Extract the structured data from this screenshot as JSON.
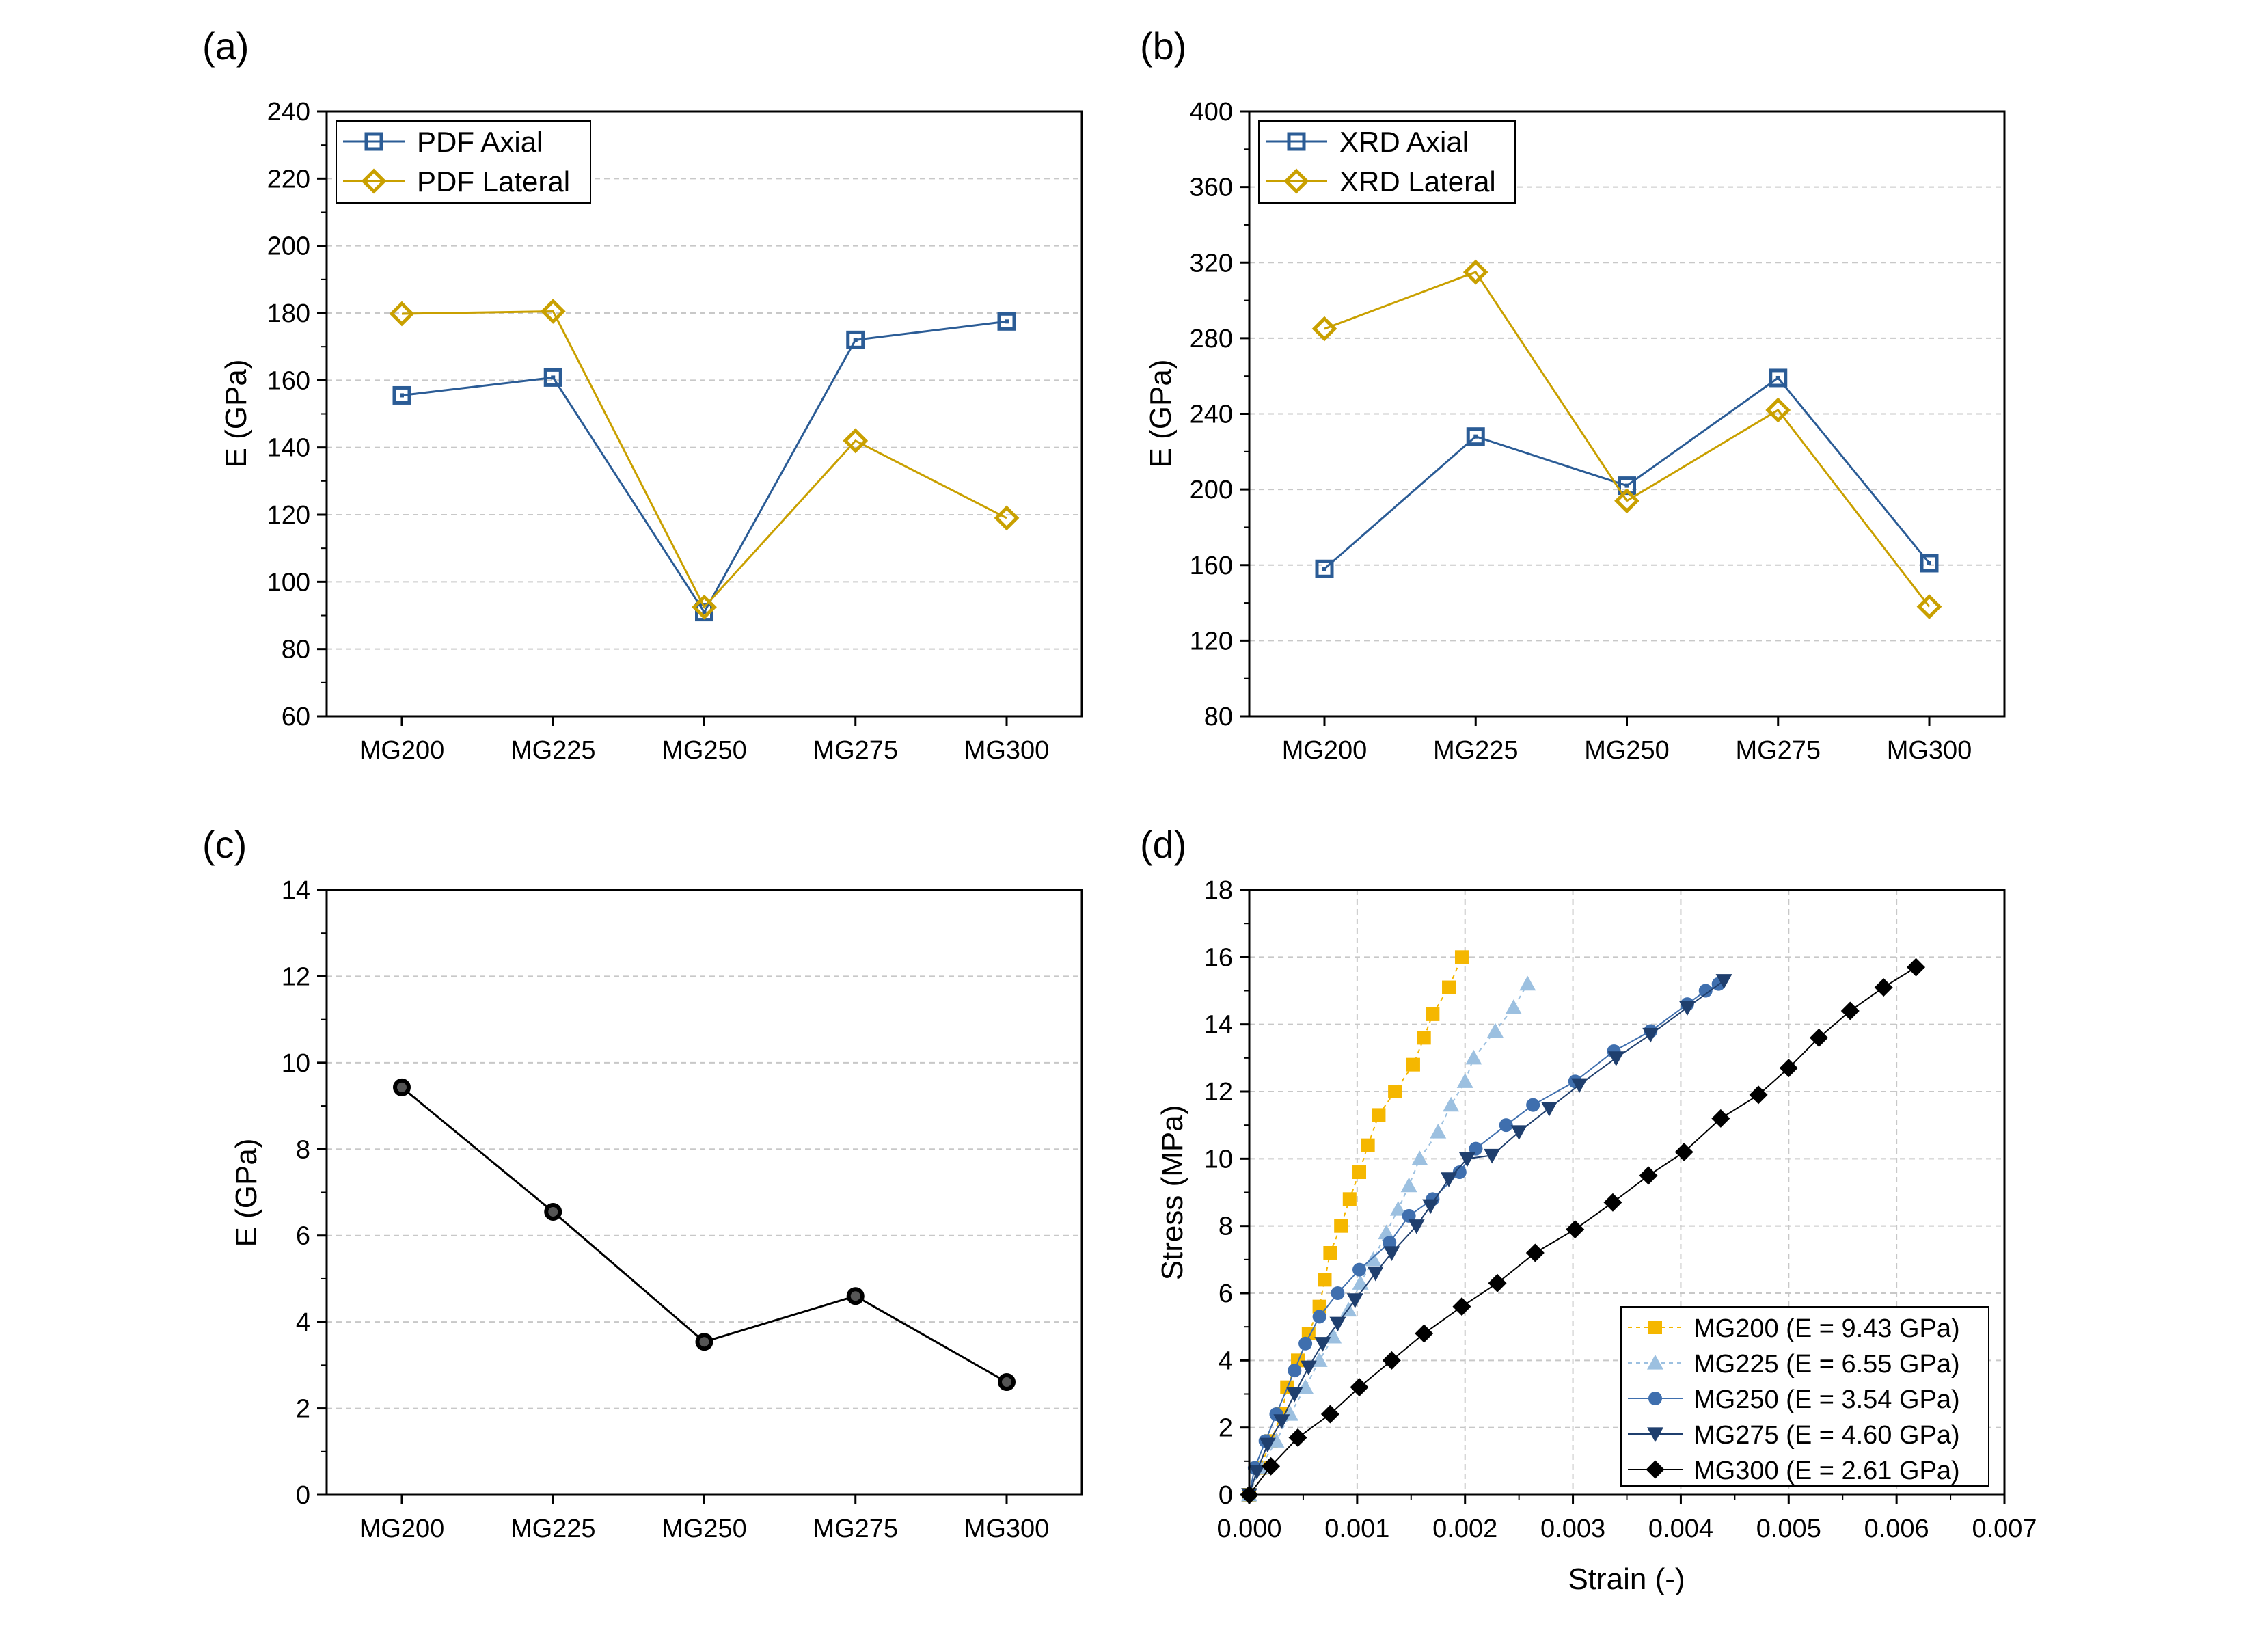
{
  "colors": {
    "axial": "#2b5c96",
    "lateral": "#c9a000",
    "black": "#000000",
    "mg200": "#f5b700",
    "mg225": "#9cc0e0",
    "mg250": "#3f6fae",
    "mg275": "#1f3f6e",
    "mg300": "#000000",
    "grid": "#c8c8c8"
  },
  "chart_data": [
    {
      "panel_label": "(a)",
      "type": "line",
      "categories": [
        "MG200",
        "MG225",
        "MG250",
        "MG275",
        "MG300"
      ],
      "ylabel": "E (GPa)",
      "xlabel": "",
      "ylim": [
        60,
        240
      ],
      "yticks": [
        60,
        80,
        100,
        120,
        140,
        160,
        180,
        200,
        220,
        240
      ],
      "grid": "horizontal dashed",
      "legend_position": "top-left",
      "series": [
        {
          "name": "PDF Axial",
          "marker": "square",
          "color_key": "axial",
          "values": [
            155.5,
            160.8,
            91,
            172,
            177.5
          ]
        },
        {
          "name": "PDF Lateral",
          "marker": "diamond",
          "color_key": "lateral",
          "values": [
            179.8,
            180.5,
            92.5,
            142,
            119
          ]
        }
      ]
    },
    {
      "panel_label": "(b)",
      "type": "line",
      "categories": [
        "MG200",
        "MG225",
        "MG250",
        "MG275",
        "MG300"
      ],
      "ylabel": "E (GPa)",
      "xlabel": "",
      "ylim": [
        80,
        400
      ],
      "yticks": [
        80,
        120,
        160,
        200,
        240,
        280,
        320,
        360,
        400
      ],
      "grid": "horizontal dashed",
      "legend_position": "top-left",
      "series": [
        {
          "name": "XRD Axial",
          "marker": "square",
          "color_key": "axial",
          "values": [
            158,
            228,
            202,
            259,
            161
          ]
        },
        {
          "name": "XRD Lateral",
          "marker": "diamond",
          "color_key": "lateral",
          "values": [
            285,
            315,
            194,
            242,
            138
          ]
        }
      ]
    },
    {
      "panel_label": "(c)",
      "type": "line",
      "categories": [
        "MG200",
        "MG225",
        "MG250",
        "MG275",
        "MG300"
      ],
      "ylabel": "E (GPa)",
      "xlabel": "",
      "ylim": [
        0,
        14
      ],
      "yticks": [
        0,
        2,
        4,
        6,
        8,
        10,
        12,
        14
      ],
      "grid": "horizontal dashed",
      "series": [
        {
          "name": "",
          "marker": "circle-open",
          "color_key": "black",
          "values": [
            9.43,
            6.55,
            3.54,
            4.6,
            2.61
          ]
        }
      ]
    },
    {
      "panel_label": "(d)",
      "type": "scatter",
      "xlabel": "Strain (-)",
      "ylabel": "Stress (MPa)",
      "xlim": [
        0,
        0.007
      ],
      "ylim": [
        0,
        18
      ],
      "xticks": [
        "0.000",
        "0.001",
        "0.002",
        "0.003",
        "0.004",
        "0.005",
        "0.006",
        "0.007"
      ],
      "yticks": [
        0,
        2,
        4,
        6,
        8,
        10,
        12,
        14,
        16,
        18
      ],
      "grid": "both dashed",
      "legend_position": "bottom-right",
      "series": [
        {
          "name": "MG200 (E = 9.43 GPa)",
          "marker": "square",
          "color_key": "mg200",
          "dash": "6,6",
          "x": [
            0.0,
            0.0001,
            0.0002,
            0.0003,
            0.00035,
            0.00045,
            0.00055,
            0.00065,
            0.0007,
            0.00075,
            0.00085,
            0.00093,
            0.00102,
            0.0011,
            0.0012,
            0.00135,
            0.00152,
            0.00162,
            0.0017,
            0.00185,
            0.00197
          ],
          "y": [
            0.0,
            0.8,
            1.6,
            2.4,
            3.2,
            4.0,
            4.8,
            5.6,
            6.4,
            7.2,
            8.0,
            8.8,
            9.6,
            10.4,
            11.3,
            12.0,
            12.8,
            13.6,
            14.3,
            15.1,
            16.0
          ]
        },
        {
          "name": "MG225 (E = 6.55 GPa)",
          "marker": "triangle-up",
          "color_key": "mg225",
          "dash": "6,6",
          "x": [
            0.0,
            0.0001,
            0.00025,
            0.00038,
            0.00052,
            0.00065,
            0.00078,
            0.00092,
            0.00103,
            0.00115,
            0.00127,
            0.00138,
            0.00148,
            0.00158,
            0.00175,
            0.00187,
            0.002,
            0.00208,
            0.00228,
            0.00245,
            0.00258
          ],
          "y": [
            0.0,
            0.8,
            1.6,
            2.4,
            3.2,
            4.0,
            4.7,
            5.5,
            6.3,
            7.0,
            7.8,
            8.5,
            9.2,
            10.0,
            10.8,
            11.6,
            12.3,
            13.0,
            13.8,
            14.5,
            15.2
          ]
        },
        {
          "name": "MG250 (E = 3.54 GPa)",
          "marker": "circle",
          "color_key": "mg250",
          "dash": "",
          "x": [
            0.0,
            5e-05,
            0.00015,
            0.00025,
            0.00042,
            0.00052,
            0.00065,
            0.00082,
            0.00102,
            0.0013,
            0.00148,
            0.0017,
            0.00195,
            0.0021,
            0.00238,
            0.00263,
            0.00302,
            0.00338,
            0.00372,
            0.00406,
            0.00423,
            0.00435
          ],
          "y": [
            0.0,
            0.8,
            1.6,
            2.4,
            3.7,
            4.5,
            5.3,
            6.0,
            6.7,
            7.5,
            8.3,
            8.8,
            9.6,
            10.3,
            11.0,
            11.6,
            12.3,
            13.2,
            13.8,
            14.6,
            15.0,
            15.2
          ]
        },
        {
          "name": "MG275 (E = 4.60 GPa)",
          "marker": "triangle-down",
          "color_key": "mg275",
          "dash": "",
          "x": [
            0.0,
            7e-05,
            0.00017,
            0.0003,
            0.00042,
            0.00055,
            0.00068,
            0.00082,
            0.00098,
            0.00117,
            0.00132,
            0.00155,
            0.00168,
            0.00185,
            0.00202,
            0.00225,
            0.0025,
            0.00278,
            0.00306,
            0.0034,
            0.00372,
            0.00406,
            0.0044
          ],
          "y": [
            0.0,
            0.7,
            1.5,
            2.2,
            3.0,
            3.8,
            4.5,
            5.1,
            5.8,
            6.6,
            7.2,
            8.0,
            8.6,
            9.4,
            10.0,
            10.1,
            10.8,
            11.5,
            12.2,
            13.0,
            13.7,
            14.5,
            15.3
          ]
        },
        {
          "name": "MG300 (E = 2.61 GPa)",
          "marker": "diamond",
          "color_key": "mg300",
          "dash": "",
          "x": [
            0.0,
            0.0002,
            0.00045,
            0.00075,
            0.00102,
            0.00132,
            0.00162,
            0.00197,
            0.0023,
            0.00265,
            0.00302,
            0.00337,
            0.0037,
            0.00403,
            0.00437,
            0.00472,
            0.005,
            0.00528,
            0.00557,
            0.00588,
            0.00618
          ],
          "y": [
            0.0,
            0.85,
            1.7,
            2.4,
            3.2,
            4.0,
            4.8,
            5.6,
            6.3,
            7.2,
            7.9,
            8.7,
            9.5,
            10.2,
            11.2,
            11.9,
            12.7,
            13.6,
            14.4,
            15.1,
            15.7
          ]
        }
      ]
    }
  ]
}
